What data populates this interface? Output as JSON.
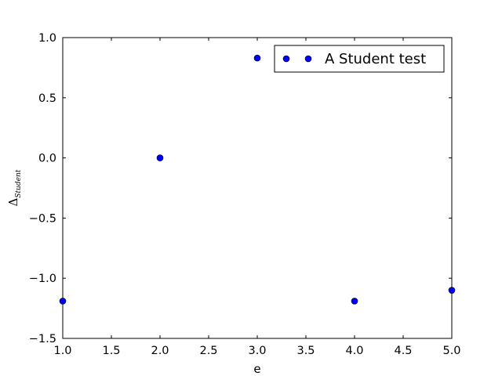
{
  "chart_data": {
    "type": "scatter",
    "x": [
      1.0,
      2.0,
      3.0,
      4.0,
      5.0
    ],
    "series": [
      {
        "name": "A Student test",
        "x": [
          1.0,
          2.0,
          3.0,
          4.0,
          5.0
        ],
        "y": [
          -1.19,
          0.0,
          0.83,
          -1.19,
          -1.1
        ],
        "color": "#0000ff"
      }
    ],
    "xlabel": "e",
    "ylabel_main": "Δ",
    "ylabel_sub": "Student",
    "xlim": [
      1.0,
      5.0
    ],
    "ylim": [
      -1.5,
      1.0
    ],
    "xticks": [
      "1.0",
      "1.5",
      "2.0",
      "2.5",
      "3.0",
      "3.5",
      "4.0",
      "4.5",
      "5.0"
    ],
    "yticks": [
      "1.0",
      "0.5",
      "0.0",
      "−0.5",
      "−1.0",
      "−1.5"
    ],
    "grid": false,
    "legend_position": "top-right"
  }
}
